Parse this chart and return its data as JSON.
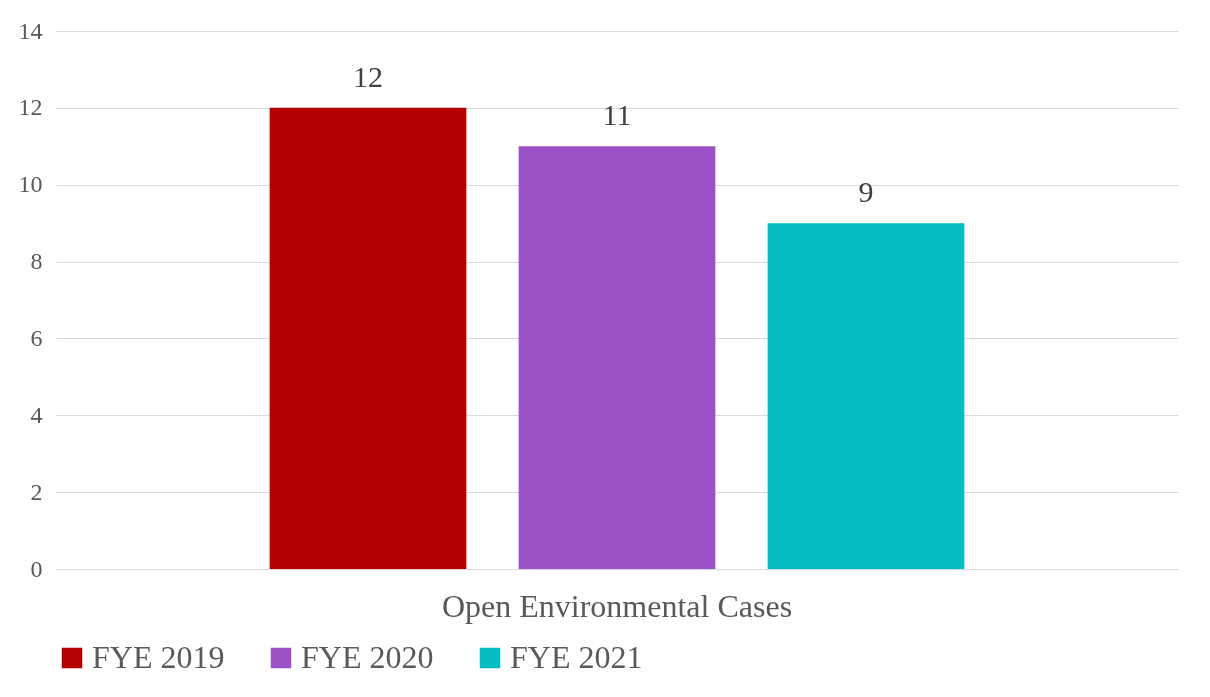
{
  "chart_data": {
    "type": "bar",
    "categories": [
      "Open Environmental Cases"
    ],
    "series": [
      {
        "name": "FYE 2019",
        "color": "#b30000",
        "values": [
          12
        ]
      },
      {
        "name": "FYE 2020",
        "color": "#9a52c6",
        "values": [
          11
        ]
      },
      {
        "name": "FYE 2021",
        "color": "#05bec4",
        "values": [
          9
        ]
      }
    ],
    "ylim": [
      0,
      14
    ],
    "yticks": [
      0,
      2,
      4,
      6,
      8,
      10,
      12,
      14
    ],
    "grid": "y",
    "legend": "bottom",
    "data_labels": true
  }
}
